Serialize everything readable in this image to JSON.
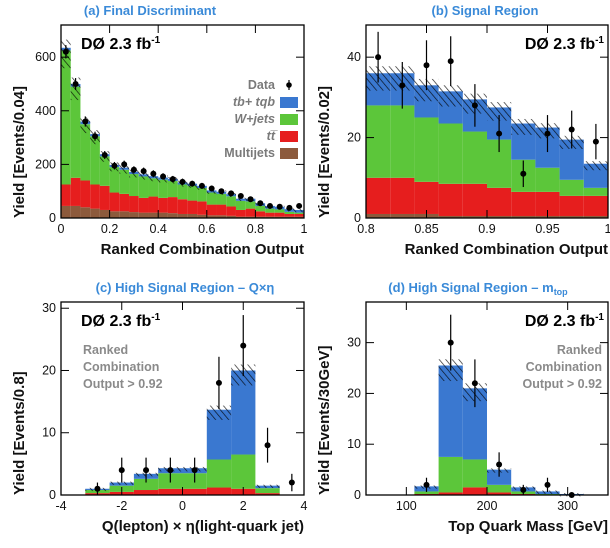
{
  "colors": {
    "signal": "#3a78d0",
    "wjets": "#5cc63a",
    "ttbar": "#e61e1e",
    "multijets": "#8c5a3c",
    "title": "#3a8ad8"
  },
  "legend": {
    "data": "Data",
    "signal": "tb+ tqb",
    "wjets": "W+jets",
    "ttbar": "tt̅",
    "multijets": "Multijets"
  },
  "chart_data": [
    {
      "type": "bar",
      "title": "(a)  Final Discriminant",
      "label": "DØ  2.3 fb",
      "label_sup": "-1",
      "xlabel": "Ranked Combination Output",
      "ylabel": "Yield  [Events/0.04]",
      "xlim": [
        0,
        1
      ],
      "ylim": [
        0,
        720
      ],
      "xticks": [
        0,
        0.2,
        0.4,
        0.6,
        0.8,
        1
      ],
      "xticklabels": [
        "0",
        "0.2",
        "0.4",
        "0.6",
        "0.8",
        "1"
      ],
      "yticks": [
        0,
        200,
        400,
        600
      ],
      "bin_edges": [
        0,
        0.04,
        0.08,
        0.12,
        0.16,
        0.2,
        0.24,
        0.28,
        0.32,
        0.36,
        0.4,
        0.44,
        0.48,
        0.52,
        0.56,
        0.6,
        0.64,
        0.68,
        0.72,
        0.76,
        0.8,
        0.84,
        0.88,
        0.92,
        0.96,
        1.0
      ],
      "stack": {
        "multijets": [
          45,
          45,
          40,
          35,
          30,
          25,
          25,
          22,
          20,
          20,
          20,
          18,
          15,
          15,
          12,
          10,
          10,
          8,
          5,
          5,
          5,
          5,
          5,
          5,
          5
        ],
        "ttbar": [
          80,
          105,
          100,
          90,
          90,
          70,
          65,
          60,
          55,
          60,
          55,
          60,
          55,
          50,
          50,
          40,
          40,
          35,
          25,
          30,
          20,
          15,
          15,
          10,
          10
        ],
        "wjets": [
          500,
          340,
          210,
          180,
          110,
          95,
          90,
          82,
          80,
          68,
          68,
          60,
          55,
          55,
          50,
          45,
          40,
          38,
          34,
          27,
          20,
          15,
          12,
          8,
          5
        ],
        "signal": [
          10,
          10,
          10,
          8,
          8,
          8,
          8,
          8,
          8,
          8,
          8,
          8,
          8,
          8,
          8,
          8,
          8,
          8,
          8,
          10,
          10,
          10,
          10,
          10,
          10
        ]
      },
      "data": {
        "x": [
          0.02,
          0.06,
          0.1,
          0.14,
          0.18,
          0.22,
          0.26,
          0.3,
          0.34,
          0.38,
          0.42,
          0.46,
          0.5,
          0.54,
          0.58,
          0.62,
          0.66,
          0.7,
          0.74,
          0.78,
          0.82,
          0.86,
          0.9,
          0.94,
          0.98
        ],
        "y": [
          620,
          500,
          360,
          305,
          235,
          195,
          200,
          180,
          175,
          165,
          155,
          145,
          135,
          128,
          120,
          110,
          100,
          92,
          82,
          70,
          55,
          45,
          42,
          38,
          45
        ],
        "err": [
          25,
          22,
          19,
          17,
          15,
          14,
          14,
          13,
          13,
          13,
          12,
          12,
          12,
          11,
          11,
          11,
          10,
          10,
          9,
          8,
          7,
          7,
          6,
          6,
          7
        ]
      },
      "show_legend": true,
      "note": ""
    },
    {
      "type": "bar",
      "title": "(b)  Signal Region",
      "label": "DØ  2.3 fb",
      "label_sup": "-1",
      "xlabel": "Ranked Combination Output",
      "ylabel": "Yield  [Events/0.02]",
      "xlim": [
        0.8,
        1
      ],
      "ylim": [
        0,
        48
      ],
      "xticks": [
        0.8,
        0.85,
        0.9,
        0.95,
        1
      ],
      "xticklabels": [
        "0.8",
        "0.85",
        "0.9",
        "0.95",
        "1"
      ],
      "yticks": [
        0,
        20,
        40
      ],
      "bin_edges": [
        0.8,
        0.82,
        0.84,
        0.86,
        0.88,
        0.9,
        0.92,
        0.94,
        0.96,
        0.98,
        1.0
      ],
      "stack": {
        "multijets": [
          1,
          1,
          1,
          0.5,
          0.5,
          0.5,
          0.5,
          0.5,
          0.5,
          0.5
        ],
        "ttbar": [
          9,
          9,
          8,
          8,
          8,
          7,
          6,
          6,
          5,
          5
        ],
        "wjets": [
          18,
          18,
          16,
          15,
          13,
          12,
          8,
          6,
          4,
          2
        ],
        "signal": [
          8,
          8,
          8,
          8,
          8,
          8,
          9,
          10,
          10,
          6
        ]
      },
      "data": {
        "x": [
          0.81,
          0.83,
          0.85,
          0.87,
          0.89,
          0.91,
          0.93,
          0.95,
          0.97,
          0.99
        ],
        "y": [
          40,
          33,
          38,
          39,
          28,
          21,
          11,
          21,
          22,
          19
        ],
        "err": [
          6.3,
          5.8,
          6.2,
          6.2,
          5.3,
          4.6,
          3.3,
          4.6,
          4.7,
          4.4
        ]
      },
      "show_legend": false,
      "note": ""
    },
    {
      "type": "bar",
      "title": "(c)  High Signal Region – Q×η",
      "label": "DØ  2.3 fb",
      "label_sup": "-1",
      "xlabel": "Q(lepton) × η(light-quark jet)",
      "ylabel": "Yield  [Events/0.8]",
      "xlim": [
        -4,
        4
      ],
      "ylim": [
        0,
        31
      ],
      "xticks": [
        -4,
        -2,
        0,
        2,
        4
      ],
      "xticklabels": [
        "-4",
        "-2",
        "0",
        "2",
        "4"
      ],
      "yticks": [
        0,
        10,
        20,
        30
      ],
      "bin_edges": [
        -3.2,
        -2.4,
        -1.6,
        -0.8,
        0,
        0.8,
        1.6,
        2.4,
        3.2
      ],
      "stack": {
        "multijets": [
          0,
          0,
          0,
          0,
          0,
          0,
          0,
          0
        ],
        "ttbar": [
          0.3,
          0.5,
          0.8,
          1.0,
          1.0,
          1.2,
          1.0,
          0.3
        ],
        "wjets": [
          0.5,
          1.0,
          1.8,
          2.5,
          2.5,
          4.5,
          5.5,
          0.8
        ],
        "signal": [
          0.2,
          0.5,
          0.8,
          0.8,
          0.8,
          8.0,
          13.5,
          0.4
        ]
      },
      "data": {
        "x": [
          -2.8,
          -2.0,
          -1.2,
          -0.4,
          0.4,
          1.2,
          2.0,
          2.8
        ],
        "y": [
          1,
          4,
          4,
          4,
          4,
          18,
          24,
          8
        ],
        "err": [
          1.0,
          2.0,
          2.0,
          2.0,
          2.0,
          4.2,
          4.9,
          2.8
        ]
      },
      "extra_points": {
        "x": [
          3.6
        ],
        "y": [
          2
        ],
        "err": [
          1.4
        ]
      },
      "show_legend": false,
      "note": [
        "Ranked",
        "Combination",
        "Output > 0.92"
      ]
    },
    {
      "type": "bar",
      "title": "(d)  High Signal Region – m",
      "title_sub": "top",
      "label": "DØ  2.3 fb",
      "label_sup": "-1",
      "xlabel": "Top Quark Mass  [GeV]",
      "ylabel": "Yield  [Events/30GeV]",
      "xlim": [
        50,
        350
      ],
      "ylim": [
        0,
        38
      ],
      "xticks": [
        100,
        200,
        300
      ],
      "xticklabels": [
        "100",
        "200",
        "300"
      ],
      "yticks": [
        0,
        10,
        20,
        30
      ],
      "bin_edges": [
        110,
        140,
        170,
        200,
        230,
        260,
        290,
        320
      ],
      "stack": {
        "multijets": [
          0,
          0,
          0,
          0,
          0,
          0,
          0
        ],
        "ttbar": [
          0.2,
          0.5,
          1.5,
          0.5,
          0.2,
          0,
          0
        ],
        "wjets": [
          0.5,
          7.0,
          5.5,
          1.5,
          0.5,
          0.2,
          0
        ],
        "signal": [
          1.0,
          18.0,
          14.0,
          3.0,
          0.8,
          0.5,
          0.2
        ]
      },
      "data": {
        "x": [
          125,
          155,
          185,
          215,
          245,
          275,
          305
        ],
        "y": [
          2,
          30,
          22,
          6,
          1,
          2,
          0
        ],
        "err": [
          1.4,
          5.5,
          4.7,
          2.4,
          1.0,
          1.4,
          0
        ]
      },
      "show_legend": false,
      "note": [
        "Ranked",
        "Combination",
        "Output > 0.92"
      ]
    }
  ]
}
